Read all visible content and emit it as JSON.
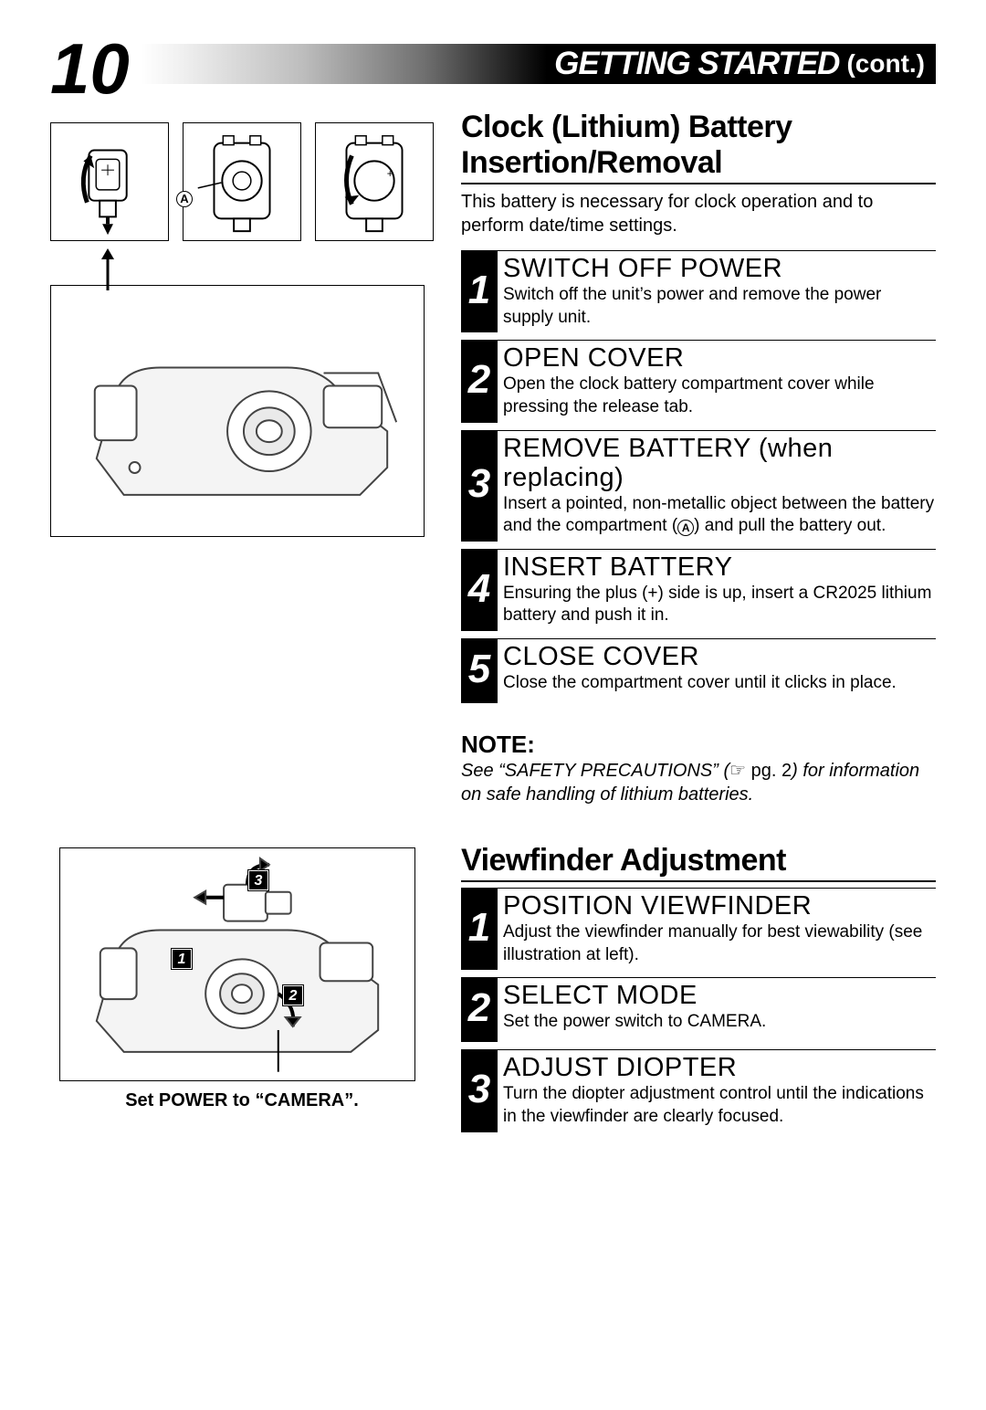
{
  "page_number": "10",
  "header": {
    "title": "GETTING STARTED",
    "cont": "(cont.)"
  },
  "section1": {
    "title": "Clock (Lithium) Battery Insertion/Removal",
    "intro": "This battery is necessary for clock operation and to perform date/time settings.",
    "steps": [
      {
        "n": "1",
        "title": "SWITCH OFF POWER",
        "text": "Switch off the unit’s power and remove the power supply unit."
      },
      {
        "n": "2",
        "title": "OPEN COVER",
        "text": "Open the clock battery compartment cover while pressing the release tab."
      },
      {
        "n": "3",
        "title": "REMOVE BATTERY (when replacing)",
        "text": "Insert a pointed, non-metallic object between the battery and the compartment (Ⓐ) and pull the battery out."
      },
      {
        "n": "4",
        "title": "INSERT BATTERY",
        "text": "Ensuring the plus (+) side is up, insert a CR2025 lithium battery and push it in."
      },
      {
        "n": "5",
        "title": "CLOSE COVER",
        "text": "Close the compartment cover until it clicks in place."
      }
    ]
  },
  "note": {
    "heading": "NOTE:",
    "text_pre": "See “SAFETY PRECAUTIONS” (",
    "pg_ref": "☞ pg. 2",
    "text_post": ") for information on safe handling of lithium batteries."
  },
  "section2": {
    "title": "Viewfinder Adjustment",
    "steps": [
      {
        "n": "1",
        "title": "POSITION VIEWFINDER",
        "text": "Adjust the viewfinder manually for best viewability (see illustration at left)."
      },
      {
        "n": "2",
        "title": "SELECT MODE",
        "text": "Set the power switch to CAMERA."
      },
      {
        "n": "3",
        "title": "ADJUST DIOPTER",
        "text": "Turn the diopter adjustment control until the indications in the viewfinder are clearly focused."
      }
    ]
  },
  "left": {
    "label_A": "A",
    "caption": "Set POWER to “CAMERA”.",
    "callouts": [
      "1",
      "2",
      "3"
    ]
  },
  "colors": {
    "bg": "#ffffff",
    "text": "#000000",
    "banner_bg": "#000000",
    "banner_text": "#ffffff",
    "step_num_bg": "#000000",
    "step_num_text": "#ffffff",
    "rule": "#000000"
  },
  "typography": {
    "page_num_pt": 78,
    "header_main_pt": 35,
    "section_title_pt": 34,
    "step_title_pt": 29,
    "body_pt": 20,
    "note_h_pt": 26,
    "caption_pt": 20
  }
}
